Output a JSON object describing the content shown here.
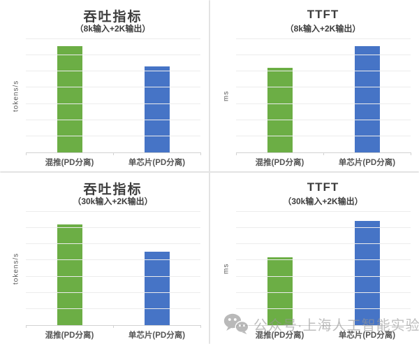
{
  "watermark": {
    "icon": "wechat-icon",
    "text": "公众号·上海人工智能实验室~"
  },
  "colors": {
    "bar_green": "#6CAE45",
    "bar_blue": "#4674C6",
    "title_text": "#3D3D3D",
    "axis_text": "#595959",
    "gridline": "#ECECEC",
    "axis_line": "#D2D2D2",
    "panel_divider": "#E3E3E3",
    "watermark_gray": "#969696"
  },
  "chart_data": [
    {
      "id": "throughput-8k",
      "type": "bar",
      "title": "吞吐指标",
      "subtitle": "（8k输入+2K输出）",
      "ylabel": "tokens/s",
      "xlabel": "",
      "categories": [
        "混推(PD分离)",
        "单芯片(PD分离)"
      ],
      "values_pct_of_axis": [
        94,
        76
      ],
      "bar_colors": [
        "#6CAE45",
        "#4674C6"
      ],
      "gridline_divisions": 7,
      "axis_tick_labels": "none",
      "ylim": [
        0,
        100
      ],
      "legend": "none"
    },
    {
      "id": "ttft-8k",
      "type": "bar",
      "title": "TTFT",
      "subtitle": "（8k输入+2K输出）",
      "ylabel": "ms",
      "xlabel": "",
      "categories": [
        "混推(PD分离)",
        "单芯片(PD分离)"
      ],
      "values_pct_of_axis": [
        75,
        94
      ],
      "bar_colors": [
        "#6CAE45",
        "#4674C6"
      ],
      "gridline_divisions": 7,
      "axis_tick_labels": "none",
      "ylim": [
        0,
        100
      ],
      "legend": "none"
    },
    {
      "id": "throughput-30k",
      "type": "bar",
      "title": "吞吐指标",
      "subtitle": "（30k输入+2K输出）",
      "ylabel": "tokens/s",
      "xlabel": "",
      "categories": [
        "混推(PD分离)",
        "单芯片(PD分离)"
      ],
      "values_pct_of_axis": [
        89,
        65
      ],
      "bar_colors": [
        "#6CAE45",
        "#4674C6"
      ],
      "gridline_divisions": 7,
      "axis_tick_labels": "none",
      "ylim": [
        0,
        100
      ],
      "legend": "none"
    },
    {
      "id": "ttft-30k",
      "type": "bar",
      "title": "TTFT",
      "subtitle": "（30k输入+2K输出）",
      "ylabel": "ms",
      "xlabel": "",
      "categories": [
        "混推(PD分离)",
        "单芯片(PD分离)"
      ],
      "values_pct_of_axis": [
        60,
        92
      ],
      "bar_colors": [
        "#6CAE45",
        "#4674C6"
      ],
      "gridline_divisions": 7,
      "axis_tick_labels": "none",
      "ylim": [
        0,
        100
      ],
      "legend": "none"
    }
  ]
}
